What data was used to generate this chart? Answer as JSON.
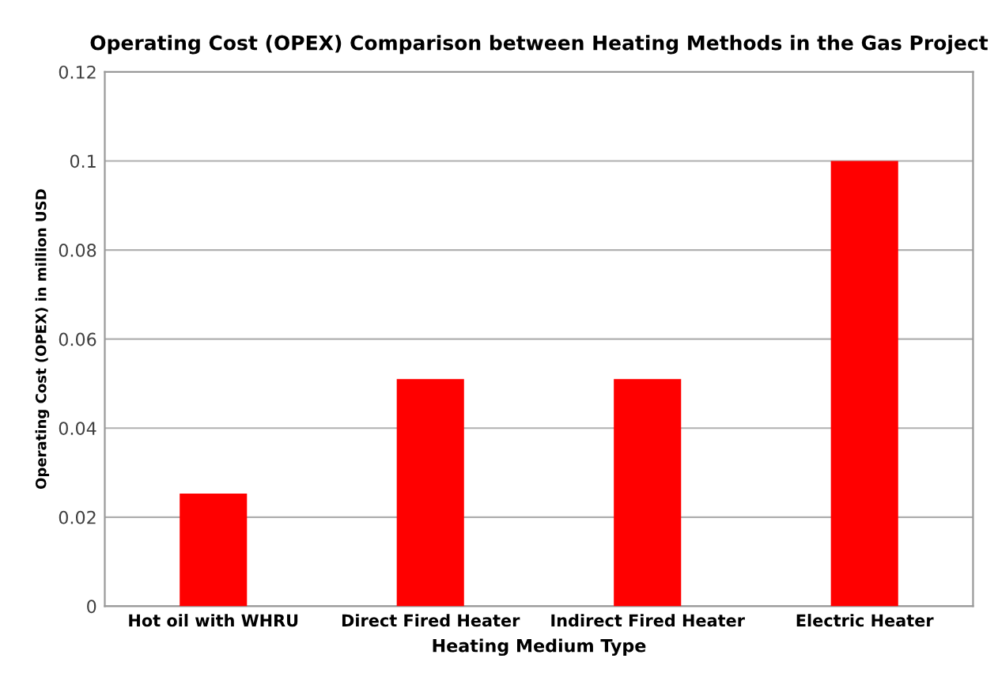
{
  "chart_data": {
    "type": "bar",
    "title": "Operating Cost (OPEX) Comparison between Heating Methods in the Gas Project",
    "xlabel": "Heating Medium Type",
    "ylabel": "Operating Cost (OPEX) in million USD",
    "categories": [
      "Hot oil with WHRU",
      "Direct Fired Heater",
      "Indirect Fired Heater",
      "Electric Heater"
    ],
    "values": [
      0.0253,
      0.051,
      0.051,
      0.1
    ],
    "color": "#ff0000",
    "ylim": [
      0,
      0.12
    ],
    "yticks": [
      0,
      0.02,
      0.04,
      0.06,
      0.08,
      0.1,
      0.12
    ],
    "grid": "y"
  }
}
